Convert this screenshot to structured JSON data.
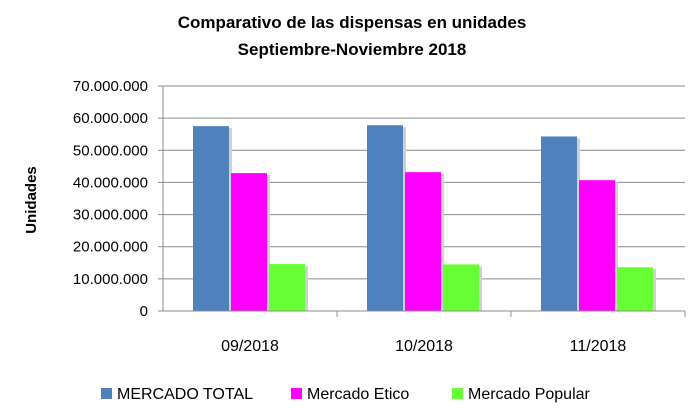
{
  "chart_data": {
    "type": "bar",
    "title": "Comparativo de las dispensas en unidades",
    "subtitle": "Septiembre-Noviembre 2018",
    "xlabel": "",
    "ylabel": "Unidades",
    "ylim": [
      0,
      70000000
    ],
    "yticks": [
      0,
      10000000,
      20000000,
      30000000,
      40000000,
      50000000,
      60000000,
      70000000
    ],
    "ytick_labels": [
      "0",
      "10.000.000",
      "20.000.000",
      "30.000.000",
      "40.000.000",
      "50.000.000",
      "60.000.000",
      "70.000.000"
    ],
    "categories": [
      "09/2018",
      "10/2018",
      "11/2018"
    ],
    "series": [
      {
        "name": "MERCADO TOTAL",
        "color": "#4F81BD",
        "values": [
          57500000,
          57800000,
          54300000
        ]
      },
      {
        "name": "Mercado Etico",
        "color": "#FF00FF",
        "values": [
          42900000,
          43200000,
          40700000
        ]
      },
      {
        "name": "Mercado Popular",
        "color": "#66FF33",
        "values": [
          14600000,
          14500000,
          13600000
        ]
      }
    ],
    "grid": true,
    "legend": "bottom"
  }
}
